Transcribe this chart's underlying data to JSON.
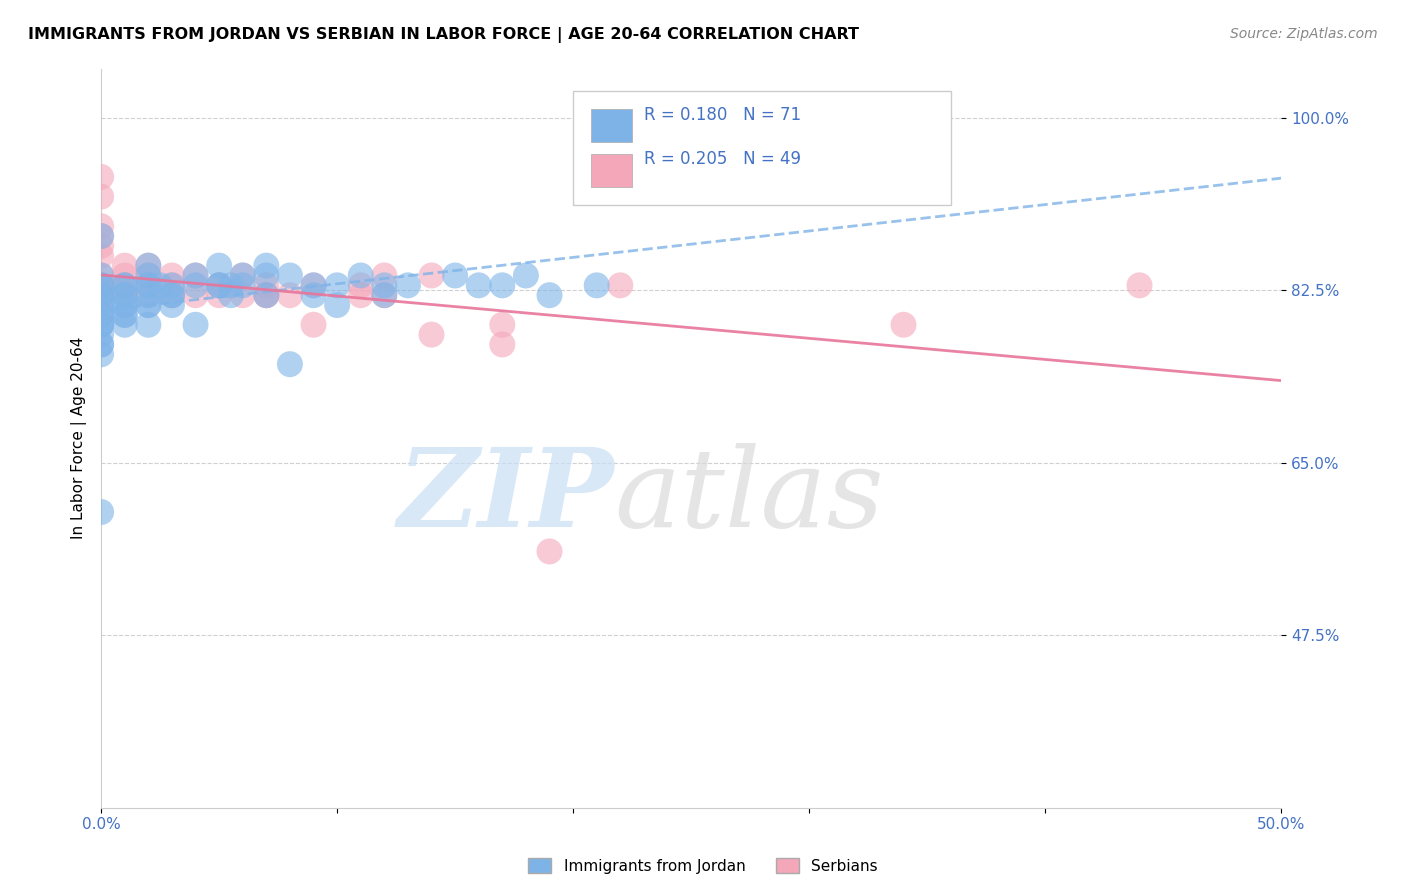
{
  "title": "IMMIGRANTS FROM JORDAN VS SERBIAN IN LABOR FORCE | AGE 20-64 CORRELATION CHART",
  "source": "Source: ZipAtlas.com",
  "ylabel_label": "In Labor Force | Age 20-64",
  "x_min": 0.0,
  "x_max": 0.5,
  "y_min": 0.3,
  "y_max": 1.05,
  "x_ticks": [
    0.0,
    0.1,
    0.2,
    0.3,
    0.4,
    0.5
  ],
  "x_tick_labels": [
    "0.0%",
    "",
    "",
    "",
    "",
    "50.0%"
  ],
  "y_ticks": [
    0.475,
    0.65,
    0.825,
    1.0
  ],
  "y_tick_labels": [
    "47.5%",
    "65.0%",
    "82.5%",
    "100.0%"
  ],
  "jordan_color": "#7eb3e8",
  "serbian_color": "#f4a7b9",
  "jordan_line_color": "#7eb3e8",
  "serbian_line_color": "#e8759a",
  "jordan_R": 0.18,
  "jordan_N": 71,
  "serbian_R": 0.205,
  "serbian_N": 49,
  "background_color": "#ffffff",
  "jordan_scatter_x": [
    0.0,
    0.0,
    0.0,
    0.0,
    0.0,
    0.0,
    0.0,
    0.0,
    0.0,
    0.0,
    0.0,
    0.0,
    0.0,
    0.0,
    0.0,
    0.0,
    0.0,
    0.0,
    0.0,
    0.01,
    0.01,
    0.01,
    0.01,
    0.01,
    0.01,
    0.01,
    0.01,
    0.01,
    0.02,
    0.02,
    0.02,
    0.02,
    0.02,
    0.02,
    0.02,
    0.02,
    0.025,
    0.03,
    0.03,
    0.03,
    0.03,
    0.04,
    0.04,
    0.04,
    0.05,
    0.05,
    0.05,
    0.055,
    0.055,
    0.06,
    0.06,
    0.07,
    0.07,
    0.07,
    0.08,
    0.08,
    0.09,
    0.09,
    0.1,
    0.1,
    0.11,
    0.12,
    0.12,
    0.13,
    0.15,
    0.16,
    0.17,
    0.18,
    0.19,
    0.21,
    0.25
  ],
  "jordan_scatter_y": [
    0.88,
    0.84,
    0.83,
    0.83,
    0.82,
    0.82,
    0.82,
    0.81,
    0.81,
    0.8,
    0.8,
    0.79,
    0.79,
    0.79,
    0.78,
    0.77,
    0.77,
    0.76,
    0.6,
    0.83,
    0.83,
    0.82,
    0.82,
    0.81,
    0.81,
    0.8,
    0.8,
    0.79,
    0.85,
    0.84,
    0.83,
    0.83,
    0.82,
    0.81,
    0.81,
    0.79,
    0.83,
    0.83,
    0.82,
    0.82,
    0.81,
    0.84,
    0.83,
    0.79,
    0.85,
    0.83,
    0.83,
    0.83,
    0.82,
    0.84,
    0.83,
    0.85,
    0.84,
    0.82,
    0.84,
    0.75,
    0.83,
    0.82,
    0.83,
    0.81,
    0.84,
    0.83,
    0.82,
    0.83,
    0.84,
    0.83,
    0.83,
    0.84,
    0.82,
    0.83,
    0.96
  ],
  "serbian_scatter_x": [
    0.0,
    0.0,
    0.0,
    0.0,
    0.0,
    0.0,
    0.0,
    0.0,
    0.0,
    0.0,
    0.0,
    0.0,
    0.0,
    0.01,
    0.01,
    0.01,
    0.01,
    0.01,
    0.02,
    0.02,
    0.02,
    0.02,
    0.03,
    0.03,
    0.03,
    0.04,
    0.04,
    0.05,
    0.05,
    0.06,
    0.06,
    0.07,
    0.07,
    0.07,
    0.08,
    0.09,
    0.09,
    0.11,
    0.11,
    0.12,
    0.12,
    0.14,
    0.14,
    0.17,
    0.17,
    0.19,
    0.22,
    0.34,
    0.44
  ],
  "serbian_scatter_y": [
    0.94,
    0.92,
    0.89,
    0.88,
    0.87,
    0.86,
    0.84,
    0.83,
    0.83,
    0.83,
    0.82,
    0.81,
    0.8,
    0.85,
    0.84,
    0.83,
    0.82,
    0.82,
    0.85,
    0.84,
    0.83,
    0.82,
    0.84,
    0.83,
    0.82,
    0.84,
    0.82,
    0.83,
    0.82,
    0.84,
    0.82,
    0.83,
    0.82,
    0.82,
    0.82,
    0.83,
    0.79,
    0.83,
    0.82,
    0.84,
    0.82,
    0.84,
    0.78,
    0.79,
    0.77,
    0.56,
    0.83,
    0.79,
    0.83
  ]
}
